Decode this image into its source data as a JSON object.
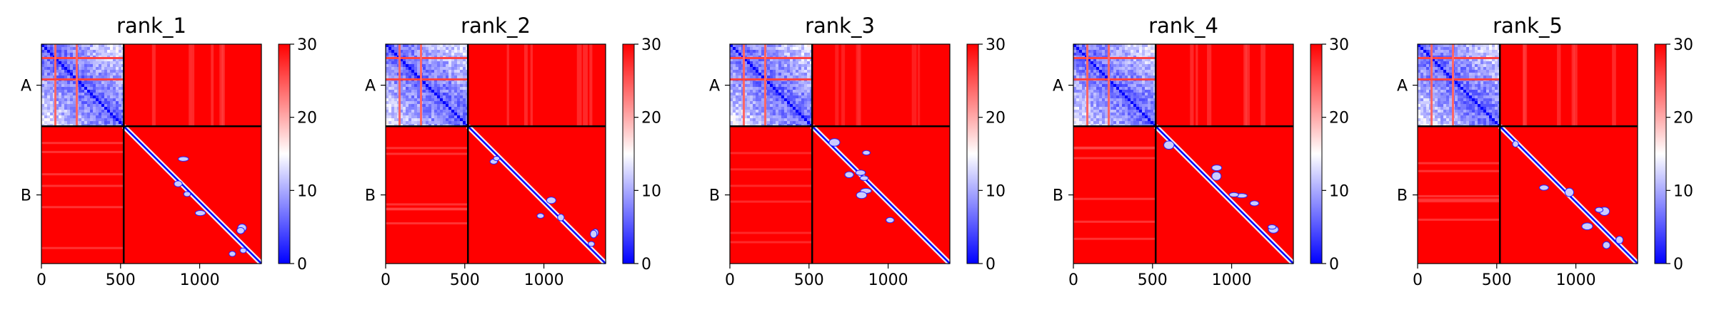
{
  "figure": {
    "colormap": {
      "low": "#0000ff",
      "mid": "#ffffff",
      "high": "#ff0000"
    },
    "chain_boundary_color": "#000000"
  },
  "chart_data": [
    {
      "type": "heatmap",
      "title": "rank_1",
      "xlabel": "",
      "ylabel": "",
      "x_ticks": [
        0,
        500,
        1000
      ],
      "xlim": [
        0,
        1390
      ],
      "chains": [
        {
          "name": "A",
          "start": 0,
          "end": 520
        },
        {
          "name": "B",
          "start": 520,
          "end": 1390
        }
      ],
      "colorbar": {
        "min": 0,
        "max": 30,
        "ticks": [
          0,
          10,
          20,
          30
        ]
      },
      "intra_chain_A_mean": 9,
      "intra_chain_B_background": 30,
      "inter_chain_mean": 29,
      "grid_on": false
    },
    {
      "type": "heatmap",
      "title": "rank_2",
      "xlabel": "",
      "ylabel": "",
      "x_ticks": [
        0,
        500,
        1000
      ],
      "xlim": [
        0,
        1390
      ],
      "chains": [
        {
          "name": "A",
          "start": 0,
          "end": 520
        },
        {
          "name": "B",
          "start": 520,
          "end": 1390
        }
      ],
      "colorbar": {
        "min": 0,
        "max": 30,
        "ticks": [
          0,
          10,
          20,
          30
        ]
      },
      "intra_chain_A_mean": 9,
      "intra_chain_B_background": 30,
      "inter_chain_mean": 29,
      "grid_on": false
    },
    {
      "type": "heatmap",
      "title": "rank_3",
      "xlabel": "",
      "ylabel": "",
      "x_ticks": [
        0,
        500,
        1000
      ],
      "xlim": [
        0,
        1390
      ],
      "chains": [
        {
          "name": "A",
          "start": 0,
          "end": 520
        },
        {
          "name": "B",
          "start": 520,
          "end": 1390
        }
      ],
      "colorbar": {
        "min": 0,
        "max": 30,
        "ticks": [
          0,
          10,
          20,
          30
        ]
      },
      "intra_chain_A_mean": 9,
      "intra_chain_B_background": 30,
      "inter_chain_mean": 30,
      "grid_on": false
    },
    {
      "type": "heatmap",
      "title": "rank_4",
      "xlabel": "",
      "ylabel": "",
      "x_ticks": [
        0,
        500,
        1000
      ],
      "xlim": [
        0,
        1390
      ],
      "chains": [
        {
          "name": "A",
          "start": 0,
          "end": 520
        },
        {
          "name": "B",
          "start": 520,
          "end": 1390
        }
      ],
      "colorbar": {
        "min": 0,
        "max": 30,
        "ticks": [
          0,
          10,
          20,
          30
        ]
      },
      "intra_chain_A_mean": 9,
      "intra_chain_B_background": 30,
      "inter_chain_mean": 29,
      "grid_on": false
    },
    {
      "type": "heatmap",
      "title": "rank_5",
      "xlabel": "",
      "ylabel": "",
      "x_ticks": [
        0,
        500,
        1000
      ],
      "xlim": [
        0,
        1390
      ],
      "chains": [
        {
          "name": "A",
          "start": 0,
          "end": 520
        },
        {
          "name": "B",
          "start": 520,
          "end": 1390
        }
      ],
      "colorbar": {
        "min": 0,
        "max": 30,
        "ticks": [
          0,
          10,
          20,
          30
        ]
      },
      "intra_chain_A_mean": 9,
      "intra_chain_B_background": 30,
      "inter_chain_mean": 29,
      "grid_on": false
    }
  ]
}
